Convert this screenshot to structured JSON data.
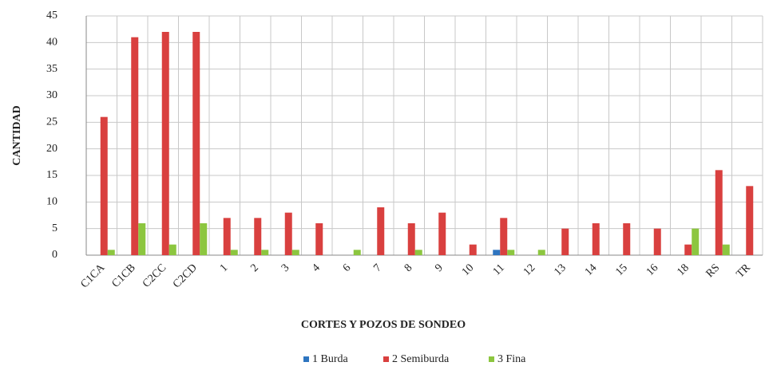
{
  "chart_data": {
    "type": "bar",
    "xlabel": "CORTES Y POZOS DE SONDEO",
    "ylabel": "CANTIDAD",
    "categories": [
      "C1CA",
      "C1CB",
      "C2CC",
      "C2CD",
      "1",
      "2",
      "3",
      "4",
      "6",
      "7",
      "8",
      "9",
      "10",
      "11",
      "12",
      "13",
      "14",
      "15",
      "16",
      "18",
      "RS",
      "TR"
    ],
    "series": [
      {
        "name": "1 Burda",
        "color": "#2e75c0",
        "values": [
          0,
          0,
          0,
          0,
          0,
          0,
          0,
          0,
          0,
          0,
          0,
          0,
          0,
          1,
          0,
          0,
          0,
          0,
          0,
          0,
          0,
          0
        ]
      },
      {
        "name": "2 Semiburda",
        "color": "#d9403f",
        "values": [
          26,
          41,
          42,
          42,
          7,
          7,
          8,
          6,
          0,
          9,
          6,
          8,
          2,
          7,
          0,
          5,
          6,
          6,
          5,
          2,
          16,
          13
        ]
      },
      {
        "name": "3 Fina",
        "color": "#8cc63f",
        "values": [
          1,
          6,
          2,
          6,
          1,
          1,
          1,
          0,
          1,
          0,
          1,
          0,
          0,
          1,
          1,
          0,
          0,
          0,
          0,
          5,
          2,
          0
        ]
      }
    ],
    "ylim": [
      0,
      45
    ],
    "yticks": [
      0,
      5,
      10,
      15,
      20,
      25,
      30,
      35,
      40,
      45
    ],
    "grid": true
  }
}
